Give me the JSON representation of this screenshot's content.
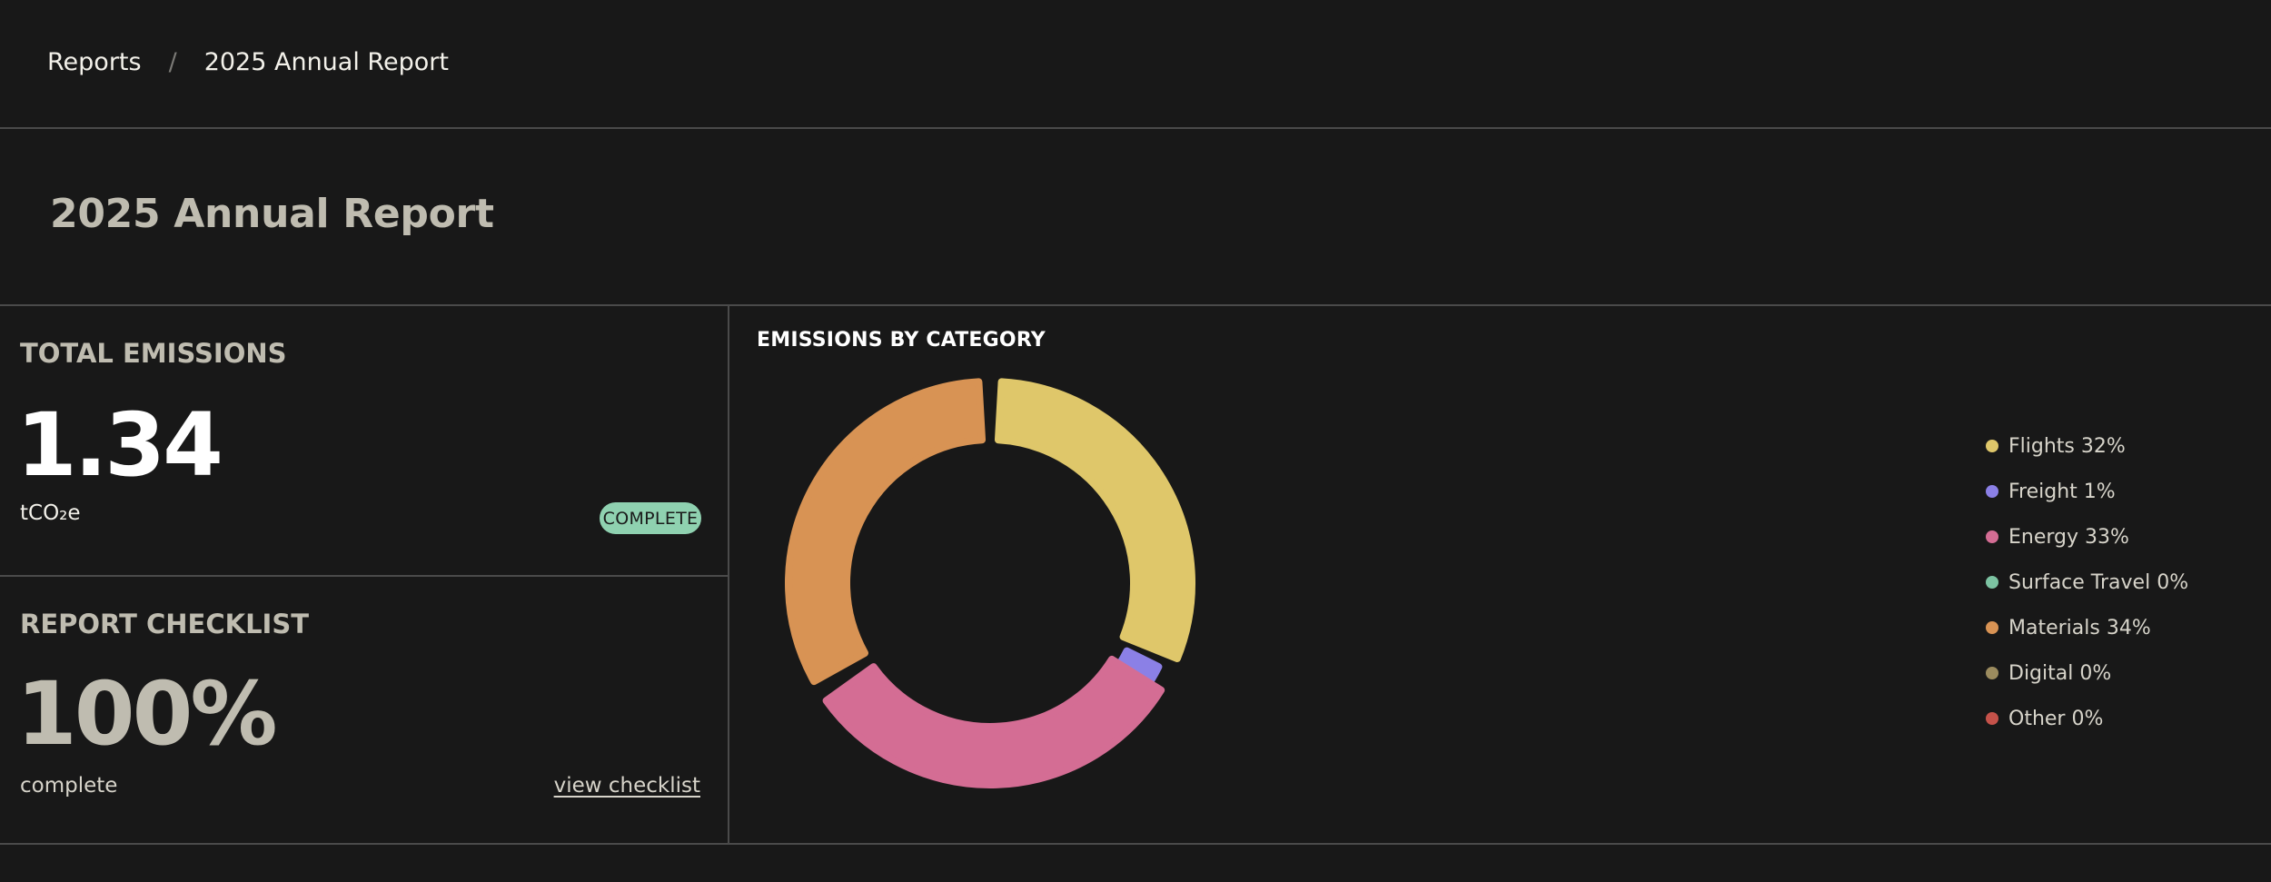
{
  "breadcrumb": {
    "parent": "Reports",
    "separator": "/",
    "current": "2025 Annual Report"
  },
  "page": {
    "title": "2025 Annual Report"
  },
  "emissions_card": {
    "label": "TOTAL EMISSIONS",
    "value": "1.34",
    "unit": "tCO₂e",
    "status": "COMPLETE",
    "status_color": "#8fd1b0"
  },
  "checklist_card": {
    "label": "REPORT CHECKLIST",
    "value": "100%",
    "caption": "complete",
    "link": "view checklist"
  },
  "category_chart": {
    "title": "EMISSIONS BY CATEGORY",
    "legend": [
      {
        "label": "Flights 32%",
        "color": "#dfc76a"
      },
      {
        "label": "Freight 1%",
        "color": "#8b80e6"
      },
      {
        "label": "Energy 33%",
        "color": "#d46d94"
      },
      {
        "label": "Surface Travel 0%",
        "color": "#7cc3a2"
      },
      {
        "label": "Materials 34%",
        "color": "#d89354"
      },
      {
        "label": "Digital 0%",
        "color": "#9b8b5e"
      },
      {
        "label": "Other 0%",
        "color": "#c5524a"
      }
    ]
  },
  "chart_data": {
    "type": "pie",
    "title": "EMISSIONS BY CATEGORY",
    "categories": [
      "Flights",
      "Freight",
      "Energy",
      "Surface Travel",
      "Materials",
      "Digital",
      "Other"
    ],
    "values": [
      32,
      1,
      33,
      0,
      34,
      0,
      0
    ],
    "colors": [
      "#dfc76a",
      "#8b80e6",
      "#d46d94",
      "#7cc3a2",
      "#d89354",
      "#9b8b5e",
      "#c5524a"
    ],
    "legend": "right"
  }
}
